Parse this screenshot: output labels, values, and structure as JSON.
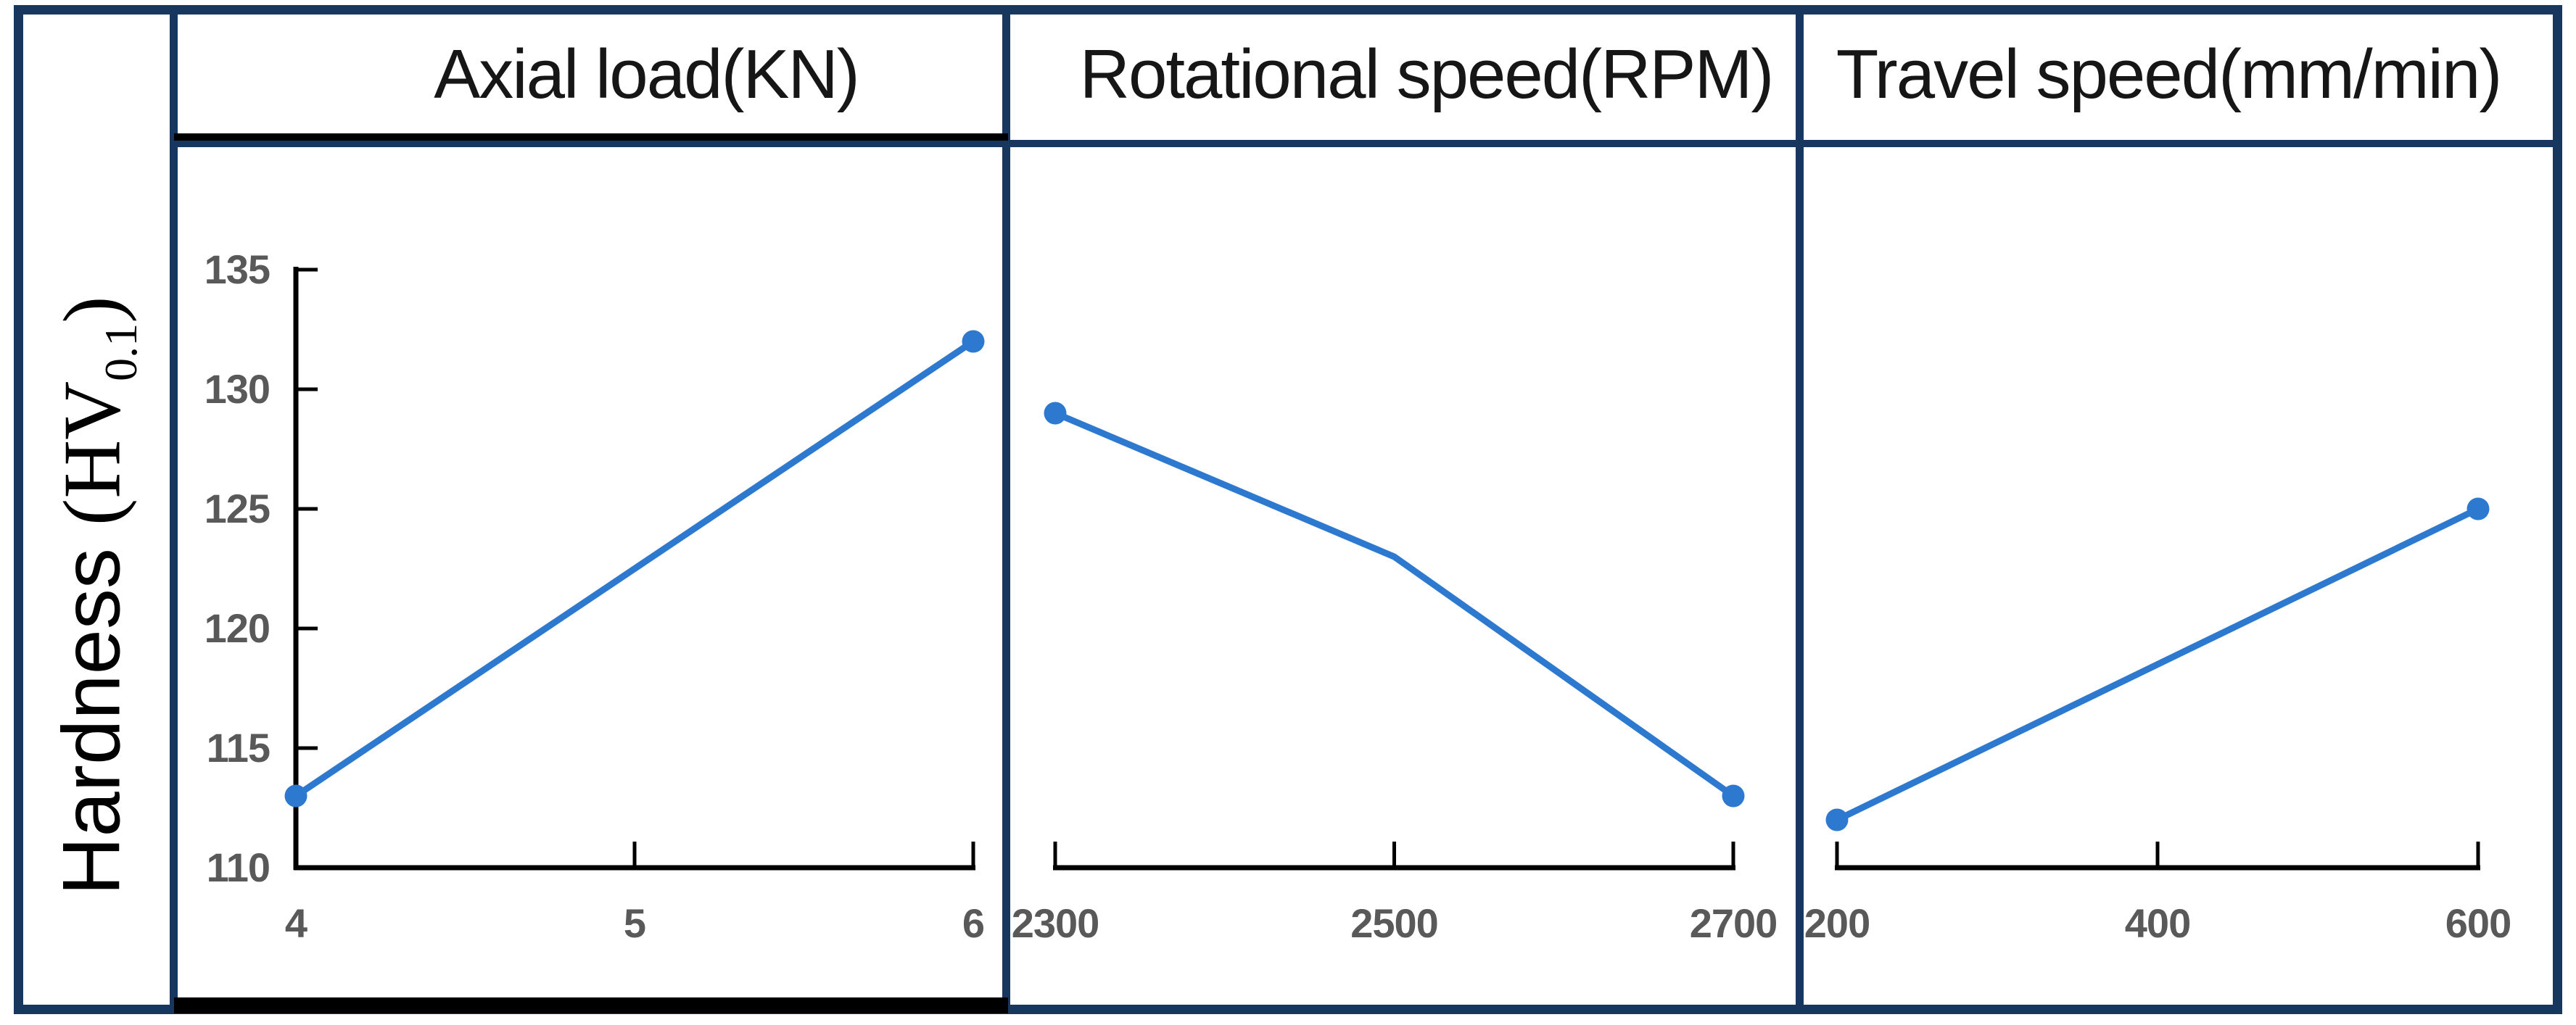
{
  "figure": {
    "kind": "main-effects-plot",
    "background": "#FFFFFF"
  },
  "colors": {
    "border_navy": "#17375E",
    "line_blue": "#2E79D0",
    "axis_black": "#000000",
    "tick_label_gray": "#595959",
    "header_text": "#161616"
  },
  "y_axis": {
    "label": "Hardness (HV0.1)",
    "label_prefix": "Hardness ",
    "label_symbol": "(HV",
    "label_subscript": "0.1",
    "label_close": ")",
    "ticks": [
      110,
      115,
      120,
      125,
      130,
      135
    ],
    "range": [
      110,
      135
    ]
  },
  "chart_data": {
    "type": "line",
    "title": "",
    "ylabel": "Hardness (HV0.1)",
    "ylim": [
      110,
      135
    ],
    "y_ticks": [
      110,
      115,
      120,
      125,
      130,
      135
    ],
    "grid": false,
    "legend": false,
    "panels": [
      {
        "label": "Axial load(KN)",
        "x_ticks": [
          4,
          5,
          6
        ],
        "points": [
          {
            "x": 4,
            "y": 113,
            "marker": true
          },
          {
            "x": 6,
            "y": 132,
            "marker": true
          }
        ]
      },
      {
        "label": "Rotational speed(RPM)",
        "x_ticks": [
          2300,
          2500,
          2700
        ],
        "points": [
          {
            "x": 2300,
            "y": 129,
            "marker": true
          },
          {
            "x": 2500,
            "y": 123,
            "marker": false
          },
          {
            "x": 2700,
            "y": 113,
            "marker": true
          }
        ]
      },
      {
        "label": "Travel speed(mm/min)",
        "x_ticks": [
          200,
          400,
          600
        ],
        "points": [
          {
            "x": 200,
            "y": 112,
            "marker": true
          },
          {
            "x": 600,
            "y": 125,
            "marker": true
          }
        ]
      }
    ]
  }
}
